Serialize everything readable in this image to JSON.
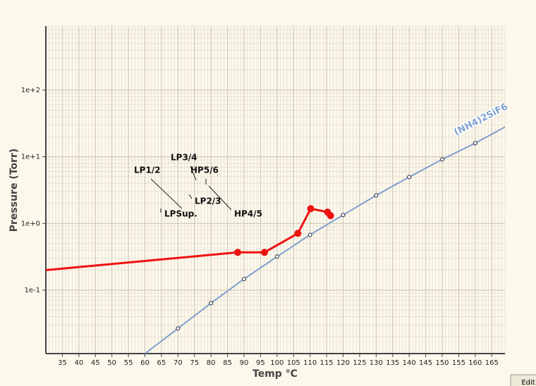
{
  "chart_data": {
    "type": "line",
    "x_label": "Temp °C",
    "y_label": "Pressure (Torr)",
    "log_y": true,
    "grid": true,
    "xlim": [
      30,
      169
    ],
    "ylim": [
      0.0112,
      912
    ],
    "xticks": [
      35,
      40,
      45,
      50,
      55,
      60,
      65,
      70,
      75,
      80,
      85,
      90,
      95,
      100,
      105,
      110,
      115,
      120,
      125,
      130,
      135,
      140,
      145,
      150,
      155,
      160,
      165
    ],
    "yticks": [
      {
        "value": 0.1,
        "label": "1e-1"
      },
      {
        "value": 1,
        "label": "1e+0"
      },
      {
        "value": 10,
        "label": "1e+1"
      },
      {
        "value": 100,
        "label": "1e+2"
      }
    ],
    "series": [
      {
        "name": "(NH4)2SiF6",
        "color": "#7f9fd0",
        "x": [
          60,
          70,
          80,
          90,
          100,
          110,
          120,
          130,
          140,
          150,
          160,
          169
        ],
        "values": [
          0.0112,
          0.0267,
          0.064,
          0.147,
          0.319,
          0.677,
          1.34,
          2.64,
          4.97,
          9.14,
          16.0,
          28
        ]
      },
      {
        "color": "#ee1111",
        "x": [
          30,
          88.1,
          96.2,
          106.3,
          110.2,
          115.3,
          116.2
        ],
        "values": [
          0.2,
          0.369,
          0.369,
          0.711,
          1.67,
          1.48,
          1.31
        ]
      }
    ],
    "annotations": [
      "LP1/2",
      "LP3/4",
      "HP5/6",
      "LP2/3",
      "HP4/5",
      "LPSup."
    ],
    "button": "Edit"
  }
}
